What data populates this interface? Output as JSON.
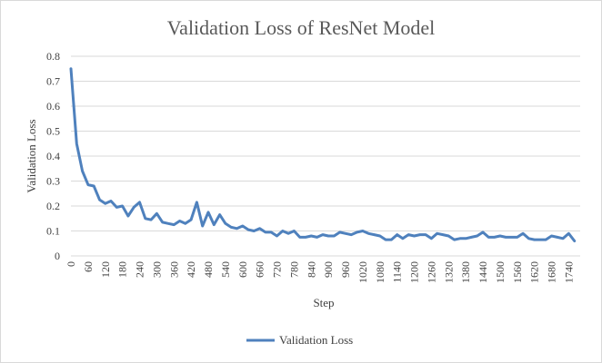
{
  "chart_data": {
    "type": "line",
    "title": "Validation Loss of ResNet Model",
    "xlabel": "Step",
    "ylabel": "Validation Loss",
    "ylim": [
      0,
      0.8
    ],
    "yticks": [
      "0",
      "0.1",
      "0.2",
      "0.3",
      "0.4",
      "0.5",
      "0.6",
      "0.7",
      "0.8"
    ],
    "xticks": [
      "0",
      "60",
      "120",
      "180",
      "240",
      "300",
      "360",
      "420",
      "480",
      "540",
      "600",
      "660",
      "720",
      "780",
      "840",
      "900",
      "960",
      "1020",
      "1080",
      "1140",
      "1200",
      "1260",
      "1320",
      "1380",
      "1440",
      "1500",
      "1560",
      "1620",
      "1680",
      "1740"
    ],
    "grid": true,
    "legend": "bottom",
    "color": "#4f81bd",
    "series": [
      {
        "name": "Validation Loss",
        "x": [
          0,
          20,
          40,
          60,
          80,
          100,
          120,
          140,
          160,
          180,
          200,
          220,
          240,
          260,
          280,
          300,
          320,
          340,
          360,
          380,
          400,
          420,
          440,
          460,
          480,
          500,
          520,
          540,
          560,
          580,
          600,
          620,
          640,
          660,
          680,
          700,
          720,
          740,
          760,
          780,
          800,
          820,
          840,
          860,
          880,
          900,
          920,
          940,
          960,
          980,
          1000,
          1020,
          1040,
          1060,
          1080,
          1100,
          1120,
          1140,
          1160,
          1180,
          1200,
          1220,
          1240,
          1260,
          1280,
          1300,
          1320,
          1340,
          1360,
          1380,
          1400,
          1420,
          1440,
          1460,
          1480,
          1500,
          1520,
          1540,
          1560,
          1580,
          1600,
          1620,
          1640,
          1660,
          1680,
          1700,
          1720,
          1740,
          1760
        ],
        "values": [
          0.75,
          0.45,
          0.34,
          0.285,
          0.28,
          0.225,
          0.21,
          0.22,
          0.195,
          0.2,
          0.16,
          0.195,
          0.215,
          0.15,
          0.145,
          0.17,
          0.135,
          0.13,
          0.125,
          0.14,
          0.13,
          0.145,
          0.215,
          0.12,
          0.175,
          0.125,
          0.165,
          0.13,
          0.115,
          0.11,
          0.12,
          0.105,
          0.1,
          0.11,
          0.095,
          0.095,
          0.08,
          0.1,
          0.09,
          0.1,
          0.075,
          0.075,
          0.08,
          0.075,
          0.085,
          0.08,
          0.08,
          0.095,
          0.09,
          0.085,
          0.095,
          0.1,
          0.09,
          0.085,
          0.08,
          0.065,
          0.065,
          0.085,
          0.07,
          0.085,
          0.08,
          0.085,
          0.085,
          0.07,
          0.09,
          0.085,
          0.08,
          0.065,
          0.07,
          0.07,
          0.075,
          0.08,
          0.095,
          0.075,
          0.075,
          0.08,
          0.075,
          0.075,
          0.075,
          0.09,
          0.07,
          0.065,
          0.065,
          0.065,
          0.08,
          0.075,
          0.07,
          0.09,
          0.06
        ]
      }
    ]
  }
}
